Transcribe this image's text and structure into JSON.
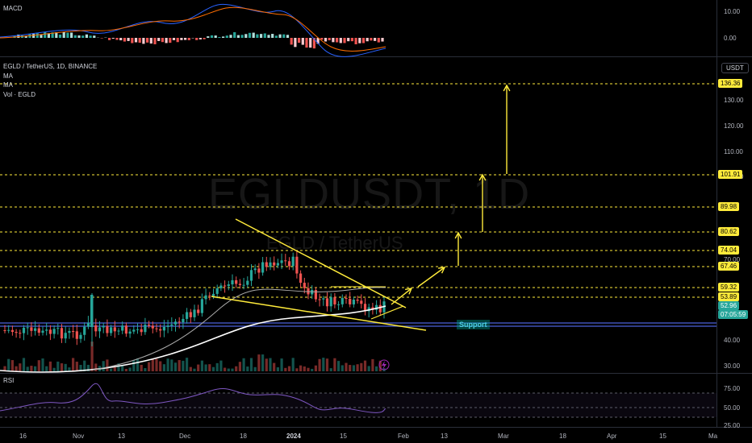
{
  "macd_pane": {
    "label": "MACD",
    "ticks": [
      "10.00",
      "0.00"
    ]
  },
  "main_pane": {
    "symbol_line": "EGLD / TetherUS, 1D, BINANCE",
    "indicators": [
      "MA",
      "MA",
      "Vol · EGLD"
    ],
    "watermark_symbol": "EGLDUSDT, 1D",
    "watermark_name": "EGLD / TetherUS",
    "currency_button": "USDT",
    "axis_ticks": [
      "130.00",
      "120.00",
      "110.00",
      "100.00",
      "70.00",
      "40.00",
      "30.00"
    ],
    "level_tags": [
      "136.36",
      "101.91",
      "89.98",
      "80.62",
      "74.04",
      "67.46",
      "59.32",
      "53.89"
    ],
    "current_price": "52.96",
    "countdown": "07:05:59",
    "support_label": "Support"
  },
  "rsi_pane": {
    "label": "RSI",
    "ticks": [
      "75.00",
      "50.00",
      "25.00"
    ]
  },
  "time_axis": [
    "16",
    "Nov",
    "13",
    "Dec",
    "18",
    "2024",
    "15",
    "Feb",
    "13",
    "Mar",
    "18",
    "Apr",
    "15",
    "Ma"
  ],
  "colors": {
    "up": "#26a69a",
    "down": "#ef5350",
    "level": "#ffeb3b",
    "support": "#3f51b5",
    "rsi": "#7e57c2",
    "macd": "#2962ff",
    "signal": "#ff6d00"
  }
}
